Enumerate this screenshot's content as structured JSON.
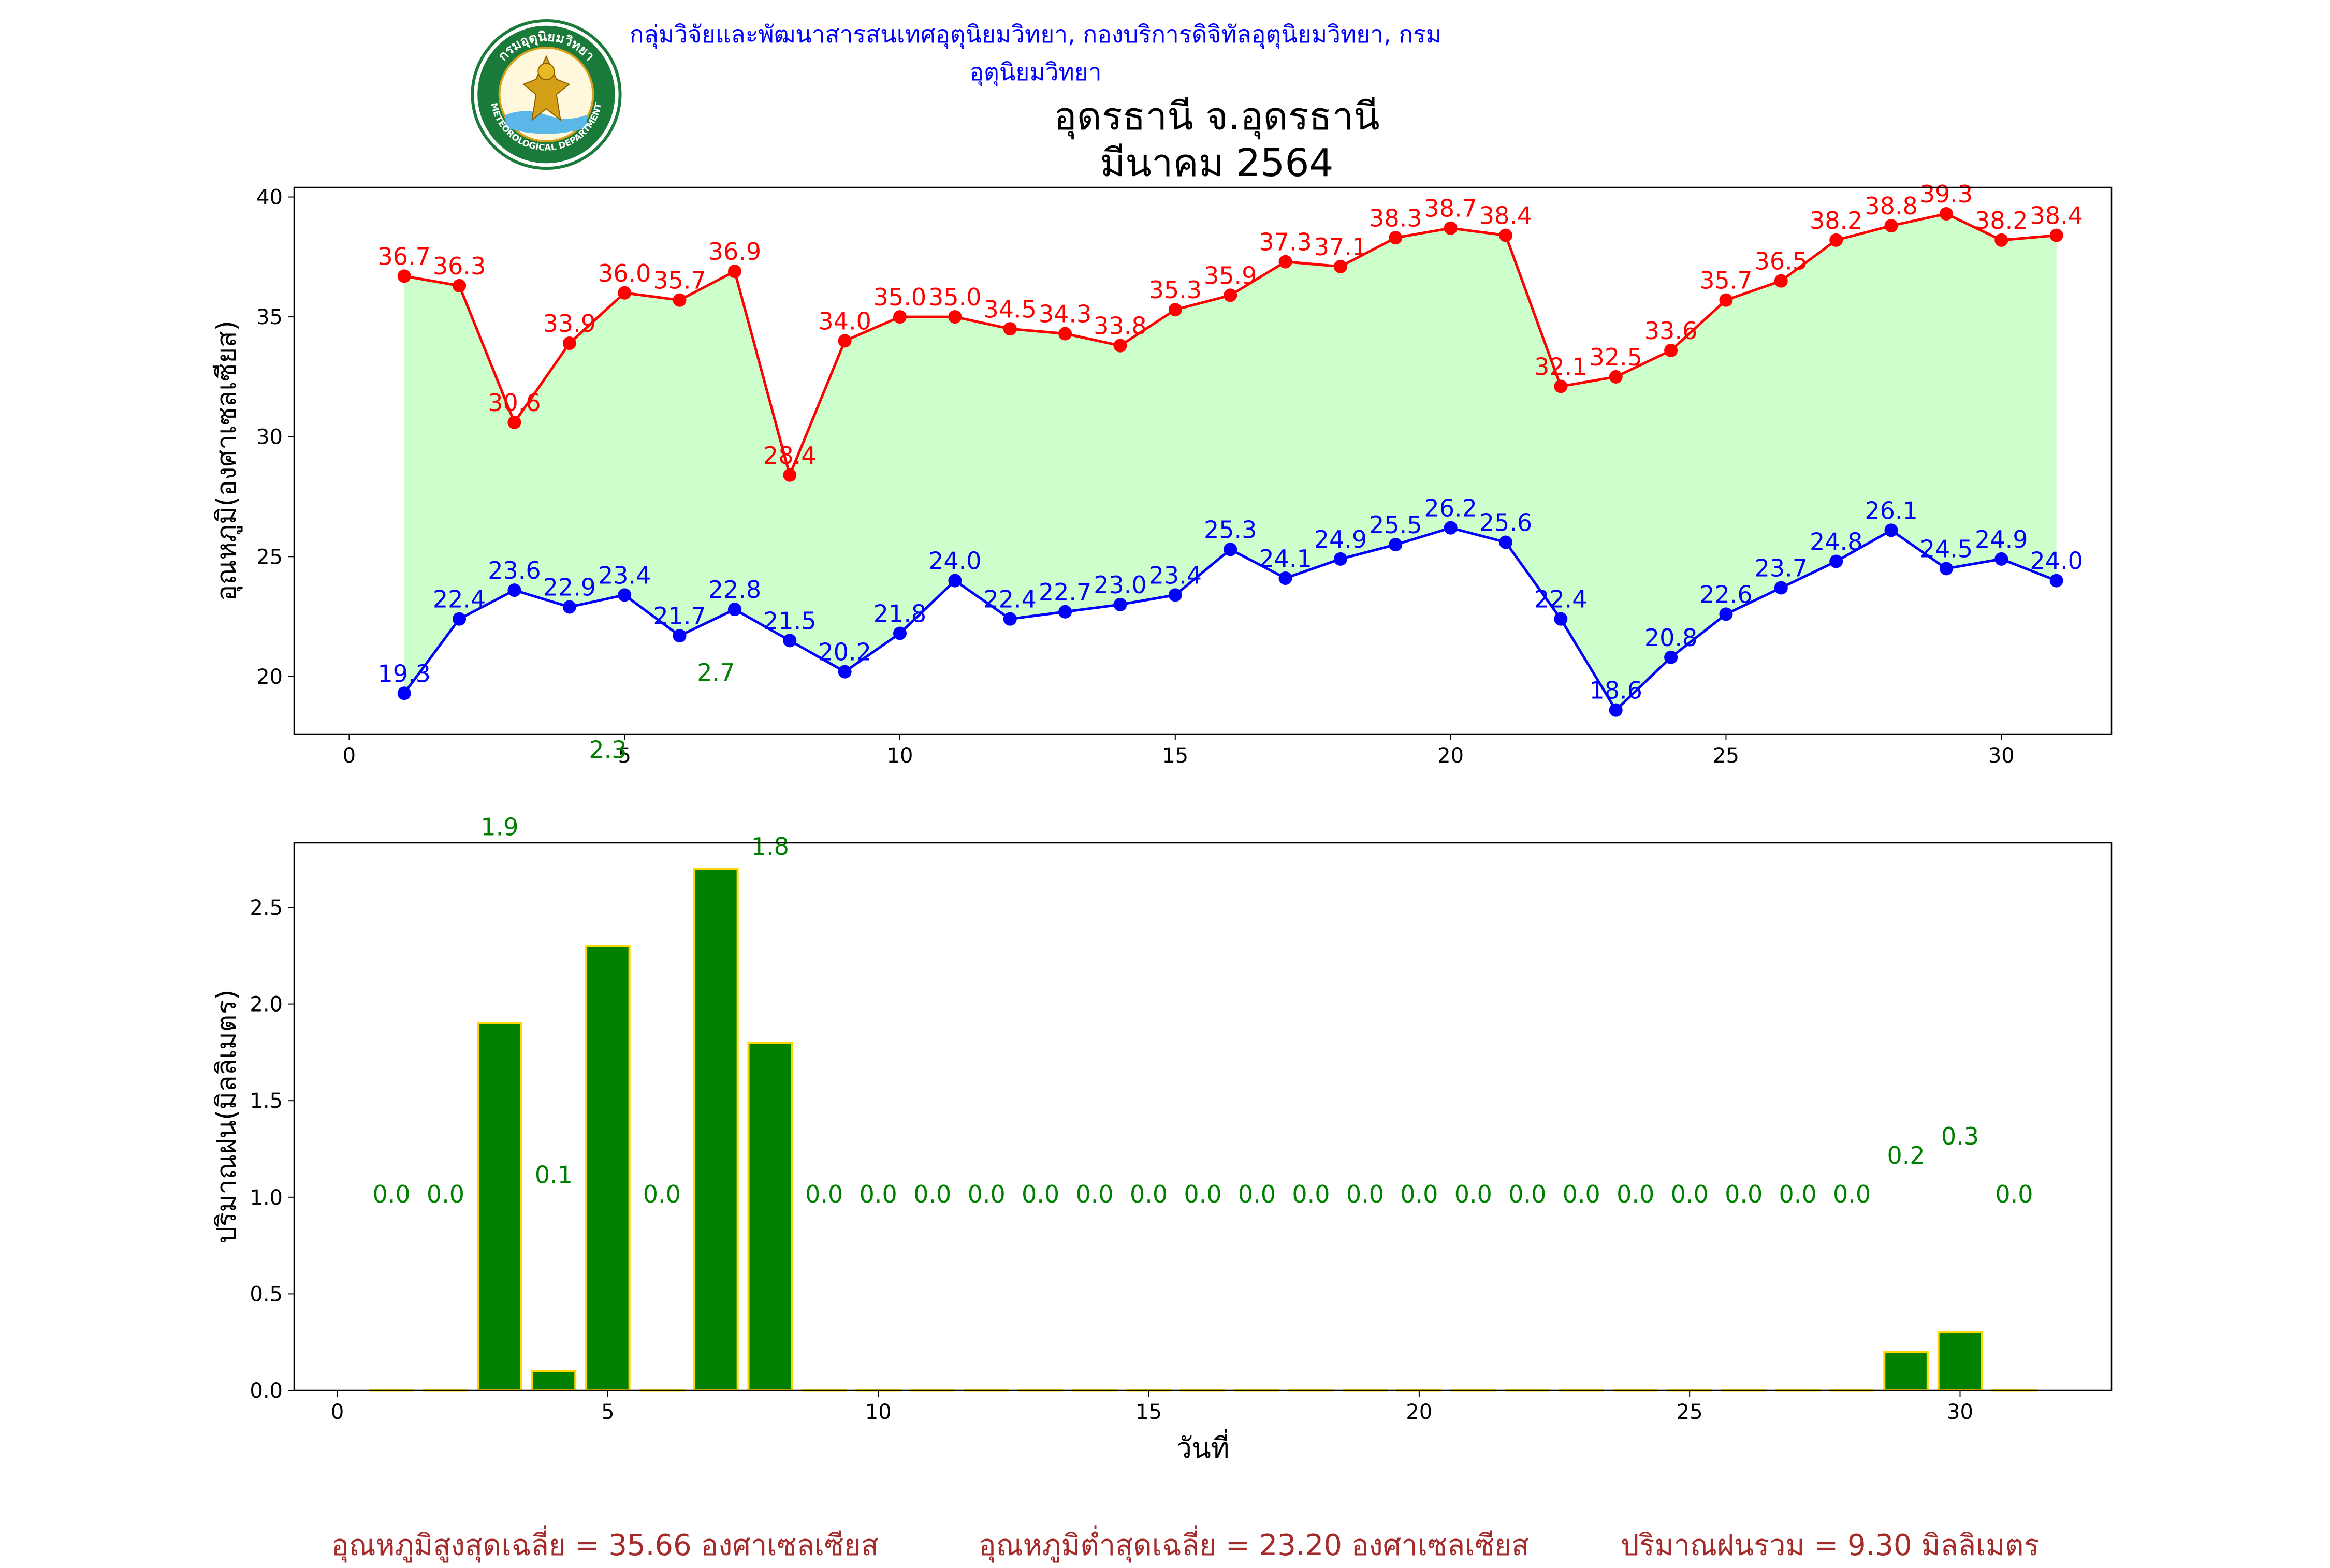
{
  "header": {
    "credit": "กลุ่มวิจัยและพัฒนาสารสนเทศอุตุนิยมวิทยา, กองบริการดิจิทัลอุตุนิยมวิทยา, กรมอุตุนิยมวิทยา",
    "title_line1": "อุดรธานี จ.อุดรธานี",
    "title_line2": "มีนาคม 2564",
    "logo_text_top": "กรมอุตุนิยมวิทยา",
    "logo_text_bottom": "METEOROLOGICAL DEPARTMENT"
  },
  "footer": {
    "avg_max": "อุณหภูมิสูงสุดเฉลี่ย = 35.66 องศาเซลเซียส",
    "avg_min": "อุณหภูมิต่ำสุดเฉลี่ย = 23.20 องศาเซลเซียส",
    "total_rain": "ปริมาณฝนรวม = 9.30 มิลลิเมตร"
  },
  "chart_data": [
    {
      "type": "line",
      "ylabel": "อุณหภูมิ(องศาเซลเซียส)",
      "xlabel": "",
      "xlim": [
        -1,
        32
      ],
      "ylim": [
        17.6,
        40.4
      ],
      "xticks": [
        0,
        5,
        10,
        15,
        20,
        25,
        30
      ],
      "yticks": [
        20,
        25,
        30,
        35,
        40
      ],
      "x": [
        1,
        2,
        3,
        4,
        5,
        6,
        7,
        8,
        9,
        10,
        11,
        12,
        13,
        14,
        15,
        16,
        17,
        18,
        19,
        20,
        21,
        22,
        23,
        24,
        25,
        26,
        27,
        28,
        29,
        30,
        31
      ],
      "fill_between_color": "#ccffcc",
      "series": [
        {
          "color": "#ff0000",
          "values": [
            36.7,
            36.3,
            30.6,
            33.9,
            36.0,
            35.7,
            36.9,
            28.4,
            34.0,
            35.0,
            35.0,
            34.5,
            34.3,
            33.8,
            35.3,
            35.9,
            37.3,
            37.1,
            38.3,
            38.7,
            38.4,
            32.1,
            32.5,
            33.6,
            35.7,
            36.5,
            38.2,
            38.8,
            39.3,
            38.2,
            38.4
          ]
        },
        {
          "color": "#0000ff",
          "values": [
            19.3,
            22.4,
            23.6,
            22.9,
            23.4,
            21.7,
            22.8,
            21.5,
            20.2,
            21.8,
            24.0,
            22.4,
            22.7,
            23.0,
            23.4,
            25.3,
            24.1,
            24.9,
            25.5,
            26.2,
            25.6,
            22.4,
            18.6,
            20.8,
            22.6,
            23.7,
            24.8,
            26.1,
            24.5,
            24.9,
            24.0
          ]
        }
      ]
    },
    {
      "type": "bar",
      "ylabel": "ปริมาณฝน(มิลลิเมตร)",
      "xlabel": "วันที่",
      "xlim": [
        -0.8,
        32.8
      ],
      "ylim": [
        0,
        2.835
      ],
      "xticks": [
        0,
        5,
        10,
        15,
        20,
        25,
        30
      ],
      "yticks": [
        0.0,
        0.5,
        1.0,
        1.5,
        2.0,
        2.5
      ],
      "bar_color": "#008000",
      "edge_color": "#ffd700",
      "label_color": "#008000",
      "categories": [
        1,
        2,
        3,
        4,
        5,
        6,
        7,
        8,
        9,
        10,
        11,
        12,
        13,
        14,
        15,
        16,
        17,
        18,
        19,
        20,
        21,
        22,
        23,
        24,
        25,
        26,
        27,
        28,
        29,
        30,
        31
      ],
      "values": [
        0.0,
        0.0,
        1.9,
        0.1,
        2.3,
        0.0,
        2.7,
        1.8,
        0.0,
        0.0,
        0.0,
        0.0,
        0.0,
        0.0,
        0.0,
        0.0,
        0.0,
        0.0,
        0.0,
        0.0,
        0.0,
        0.0,
        0.0,
        0.0,
        0.0,
        0.0,
        0.0,
        0.0,
        0.2,
        0.3,
        0.0
      ]
    }
  ]
}
